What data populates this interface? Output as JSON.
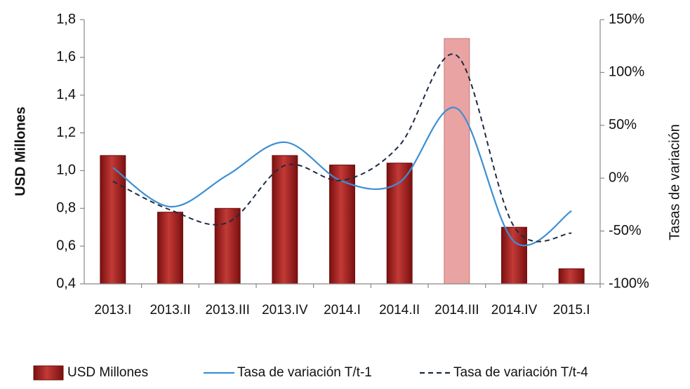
{
  "chart_data": {
    "type": "bar",
    "ylabel": "USD Millones",
    "y2label": "Tasas de variación",
    "categories": [
      "2013.I",
      "2013.II",
      "2013.III",
      "2013.IV",
      "2014.I",
      "2014.II",
      "2014.III",
      "2014.IV",
      "2015.I"
    ],
    "series": [
      {
        "name": "USD Millones",
        "type": "bar",
        "color": "#a3201f",
        "colors": [
          "#a3201f",
          "#a3201f",
          "#a3201f",
          "#a3201f",
          "#a3201f",
          "#a3201f",
          "#e9a3a3",
          "#a3201f",
          "#a3201f"
        ],
        "values": [
          1.08,
          0.78,
          0.8,
          1.08,
          1.03,
          1.04,
          1.7,
          0.7,
          0.48
        ]
      },
      {
        "name": "Tasa de variación T/t-1",
        "type": "line",
        "axis": "y2",
        "color": "#3d8fd1",
        "dash": false,
        "values": [
          10,
          -27,
          3,
          34,
          -3,
          -4,
          66,
          -60,
          -31
        ]
      },
      {
        "name": "Tasa de variación T/t-4",
        "type": "line",
        "axis": "y2",
        "color": "#1f2a44",
        "dash": true,
        "values": [
          -3,
          -30,
          -42,
          12,
          -2,
          31,
          116,
          -46,
          -52
        ]
      }
    ],
    "ylim": [
      0.4,
      1.8
    ],
    "yticks": [
      {
        "value": 0.4,
        "label": "0,4"
      },
      {
        "value": 0.6,
        "label": "0,6"
      },
      {
        "value": 0.8,
        "label": "0,8"
      },
      {
        "value": 1.0,
        "label": "1,0"
      },
      {
        "value": 1.2,
        "label": "1,2"
      },
      {
        "value": 1.4,
        "label": "1,4"
      },
      {
        "value": 1.6,
        "label": "1,6"
      },
      {
        "value": 1.8,
        "label": "1,8"
      }
    ],
    "y2lim": [
      -100,
      150
    ],
    "y2ticks": [
      {
        "value": -100,
        "label": "-100%"
      },
      {
        "value": -50,
        "label": "-50%"
      },
      {
        "value": 0,
        "label": "0%"
      },
      {
        "value": 50,
        "label": "50%"
      },
      {
        "value": 100,
        "label": "100%"
      },
      {
        "value": 150,
        "label": "150%"
      }
    ],
    "legend": "bottom"
  }
}
